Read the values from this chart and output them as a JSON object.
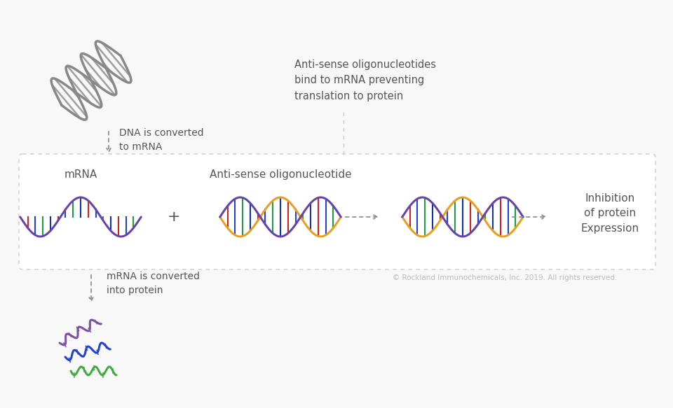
{
  "bg_color": "#f8f8f8",
  "box_color": "#ffffff",
  "text_color": "#555555",
  "text_color_light": "#bbbbbb",
  "dna_gray": "#888888",
  "mrna_purple": "#6644aa",
  "aso_orange": "#e8a020",
  "strand_red": "#cc2222",
  "strand_blue": "#2244cc",
  "strand_green": "#229944",
  "strand_darkblue": "#1133aa",
  "title_antisense": "Anti-sense oligonucleotides\nbind to mRNA preventing\ntranslation to protein",
  "label_dna": "DNA is converted\nto mRNA",
  "label_mrna": "mRNA",
  "label_aso": "Anti-sense oligonucleotide",
  "label_inhibition": "Inhibition\nof protein\nExpression",
  "label_protein_convert": "mRNA is converted\ninto protein",
  "copyright": "© Rockland Immunochemicals, Inc. 2019. All rights reserved."
}
